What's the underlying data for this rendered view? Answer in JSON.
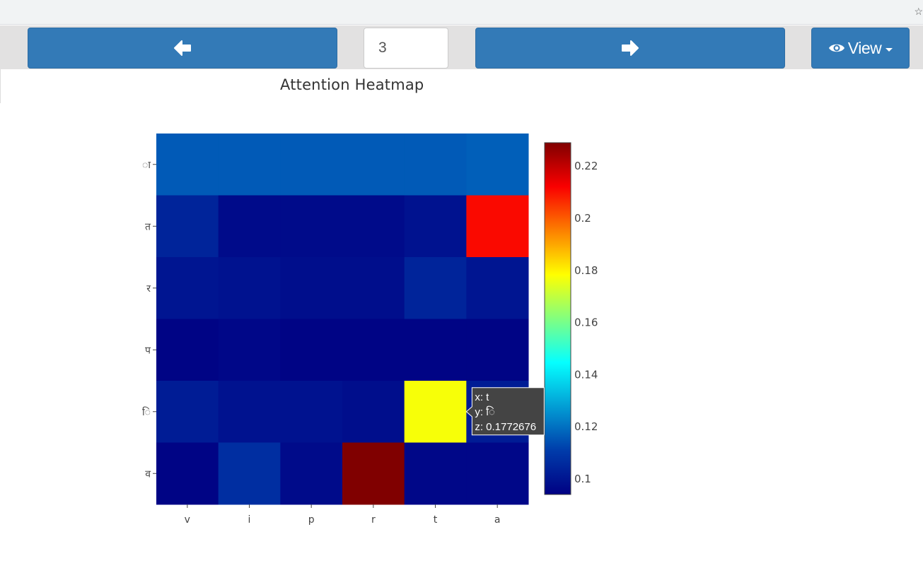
{
  "toolbar": {
    "prev_icon": "arrow-left-icon",
    "next_icon": "arrow-right-icon",
    "page_value": "3",
    "view_icon": "eye-icon",
    "view_label": "View",
    "accent_color": "#337ab7"
  },
  "chart_data": {
    "type": "heatmap",
    "title": "Attention Heatmap",
    "x": [
      "v",
      "i",
      "p",
      "r",
      "t",
      "a"
    ],
    "y": [
      "ा",
      "त",
      "र",
      "प",
      "ि",
      "व"
    ],
    "z": [
      [
        0.116,
        0.116,
        0.116,
        0.116,
        0.116,
        0.117
      ],
      [
        0.104,
        0.097,
        0.097,
        0.097,
        0.099,
        0.211
      ],
      [
        0.1,
        0.099,
        0.098,
        0.098,
        0.104,
        0.1
      ],
      [
        0.095,
        0.096,
        0.095,
        0.095,
        0.095,
        0.095
      ],
      [
        0.102,
        0.099,
        0.099,
        0.098,
        0.1772676,
        0.102
      ],
      [
        0.095,
        0.107,
        0.097,
        0.229,
        0.096,
        0.096
      ]
    ],
    "colorscale": "Jet",
    "zmin": 0.094,
    "zmax": 0.229,
    "colorbar_ticks": [
      0.1,
      0.12,
      0.14,
      0.16,
      0.18,
      0.2,
      0.22
    ],
    "hover": {
      "x": "t",
      "y": "ि",
      "z": "0.1772676",
      "x_text": "x: t",
      "y_text": "y: ि",
      "z_text": "z: 0.1772676"
    }
  }
}
